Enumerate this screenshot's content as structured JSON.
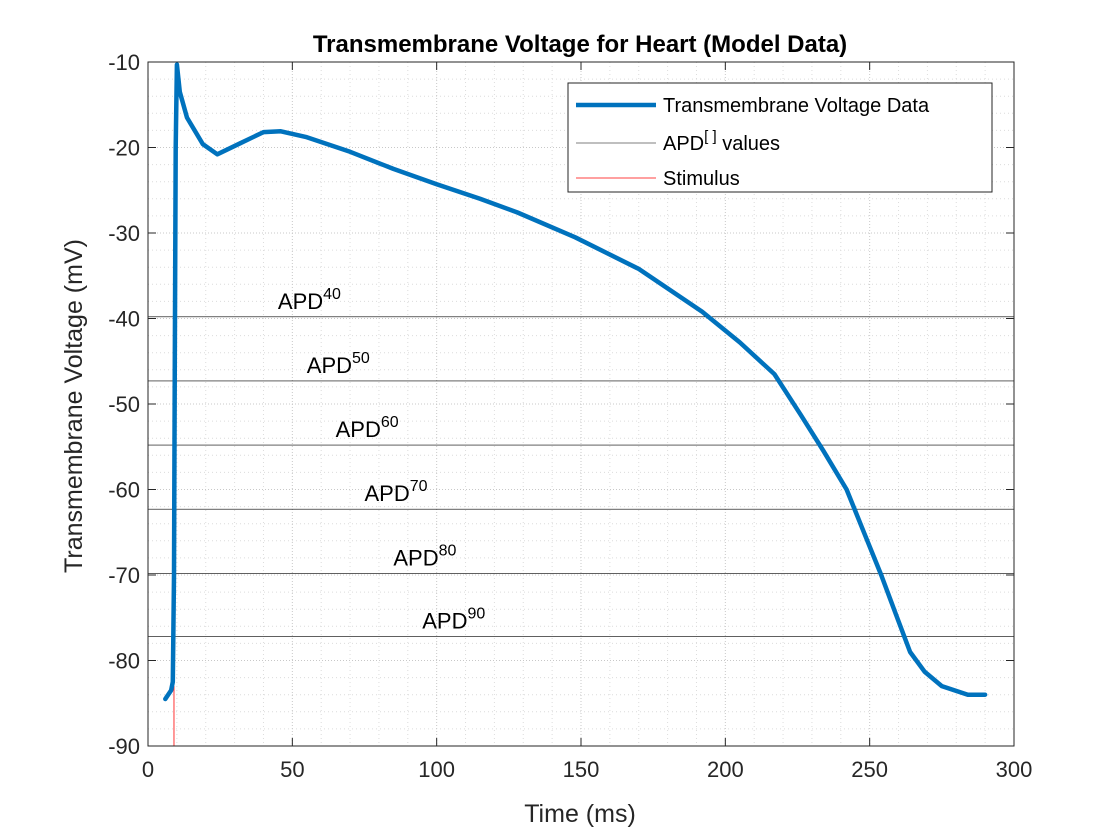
{
  "chart_data": {
    "type": "line",
    "title": "Transmembrane Voltage for Heart (Model Data)",
    "xlabel": "Time (ms)",
    "ylabel": "Transmembrane Voltage (mV)",
    "xlim": [
      0,
      300
    ],
    "ylim": [
      -90,
      -10
    ],
    "xticks": [
      0,
      50,
      100,
      150,
      200,
      250,
      300
    ],
    "yticks": [
      -90,
      -80,
      -70,
      -60,
      -50,
      -40,
      -30,
      -20,
      -10
    ],
    "grid": "major and minor, dotted",
    "legend_position": "top-right",
    "series": [
      {
        "name": "Transmembrane Voltage Data",
        "color": "#0072BD",
        "x": [
          6,
          8,
          8.6,
          9.0,
          9.3,
          9.6,
          10.0,
          11.0,
          13.5,
          19,
          24,
          32,
          40,
          46,
          55,
          70,
          85,
          100,
          115,
          128,
          148,
          170,
          192,
          205,
          217,
          226,
          234,
          242,
          248,
          254,
          259,
          264,
          269,
          275,
          284,
          290
        ],
        "y": [
          -84.5,
          -83.5,
          -82.5,
          -70,
          -45,
          -20,
          -10.3,
          -13.5,
          -16.5,
          -19.6,
          -20.8,
          -19.5,
          -18.2,
          -18.1,
          -18.8,
          -20.5,
          -22.5,
          -24.3,
          -26,
          -27.6,
          -30.5,
          -34.2,
          -39.2,
          -42.8,
          -46.5,
          -51.2,
          -55.5,
          -60,
          -65,
          -70,
          -74.5,
          -79,
          -81.3,
          -83,
          -84,
          -84
        ]
      },
      {
        "name": "APD[] values",
        "color": "#000000"
      },
      {
        "name": "Stimulus",
        "color": "#FF0000",
        "x": [
          9,
          9
        ],
        "y": [
          -90,
          -83
        ]
      }
    ],
    "apd_lines": [
      {
        "label": "APD",
        "sup": "40",
        "y": -39.8,
        "label_x": 45
      },
      {
        "label": "APD",
        "sup": "50",
        "y": -47.3,
        "label_x": 55
      },
      {
        "label": "APD",
        "sup": "60",
        "y": -54.8,
        "label_x": 65
      },
      {
        "label": "APD",
        "sup": "70",
        "y": -62.3,
        "label_x": 75
      },
      {
        "label": "APD",
        "sup": "80",
        "y": -69.8,
        "label_x": 85
      },
      {
        "label": "APD",
        "sup": "90",
        "y": -77.2,
        "label_x": 95
      }
    ],
    "legend": {
      "entries": [
        {
          "text": "Transmembrane Voltage Data"
        },
        {
          "text": "APD",
          "sup": "[ ]",
          "suffix": " values"
        },
        {
          "text": "Stimulus"
        }
      ]
    }
  }
}
